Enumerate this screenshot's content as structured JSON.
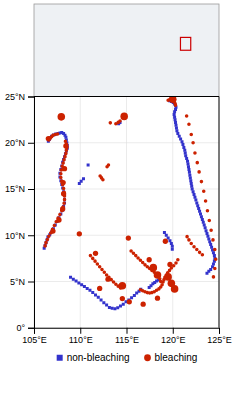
{
  "chart_data": [
    {
      "type": "map",
      "xlim": [
        -180,
        180
      ],
      "ylim": [
        -90,
        90
      ],
      "tick_labels": false,
      "region": [
        105,
        125,
        0,
        25
      ],
      "color": "#cc0000"
    },
    {
      "type": "scatter",
      "xlim": [
        105,
        125
      ],
      "ylim": [
        0,
        25
      ],
      "xticks": [
        {
          "value": 105,
          "label": "105°E"
        },
        {
          "value": 110,
          "label": "110°E"
        },
        {
          "value": 115,
          "label": "115°E"
        },
        {
          "value": 120,
          "label": "120°E"
        },
        {
          "value": 125,
          "label": "125°E"
        }
      ],
      "yticks": [
        {
          "value": 0,
          "label": "0°"
        },
        {
          "value": 5,
          "label": "5°N"
        },
        {
          "value": 10,
          "label": "10°N"
        },
        {
          "value": 15,
          "label": "15°N"
        },
        {
          "value": 20,
          "label": "20°N"
        },
        {
          "value": 25,
          "label": "25°N"
        }
      ],
      "grid": true,
      "legend": "bottom",
      "series": [
        {
          "name": "non-bleaching",
          "color": "#3333cc",
          "marker": "square",
          "x": [
            106.55,
            106.65,
            106.75,
            106.9,
            107.1,
            107.35,
            107.6,
            107.8,
            108.0,
            108.2,
            108.35,
            108.45,
            108.5,
            108.55,
            108.6,
            108.6,
            108.5,
            108.4,
            108.3,
            108.2,
            108.1,
            108.0,
            107.9,
            107.8,
            107.8,
            107.9,
            108.0,
            108.1,
            108.2,
            108.3,
            108.3,
            108.3,
            108.2,
            108.1,
            107.9,
            107.7,
            107.5,
            107.3,
            107.1,
            106.9,
            106.7,
            106.5,
            106.4,
            106.3,
            106.2,
            106.1,
            110.35,
            110.1,
            109.9,
            110.85,
            114.3,
            114.15,
            119.65,
            119.85,
            120.05,
            120.2,
            120.3,
            120.35,
            120.3,
            120.2,
            120.15,
            120.2,
            120.25,
            120.3,
            120.35,
            120.4,
            120.45,
            120.55,
            120.7,
            120.85,
            121.0,
            121.1,
            121.2,
            121.3,
            121.35,
            121.4,
            121.5,
            121.6,
            121.65,
            121.7,
            121.75,
            121.8,
            121.85,
            121.9,
            121.95,
            122.0,
            122.05,
            122.1,
            122.2,
            122.3,
            122.4,
            122.5,
            122.6,
            122.7,
            122.8,
            122.9,
            123.0,
            123.1,
            123.2,
            123.3,
            123.4,
            123.5,
            123.6,
            123.7,
            123.8,
            123.9,
            124.0,
            124.1,
            124.2,
            124.3,
            124.4,
            124.5,
            124.55,
            124.5,
            124.4,
            124.3,
            124.1,
            123.9,
            123.7,
            119.1,
            119.3,
            119.5,
            119.7,
            119.85,
            119.95,
            119.95,
            117.45,
            117.65,
            117.85,
            118.05,
            118.25,
            118.45,
            116.55,
            116.35,
            116.1,
            115.85,
            115.55,
            115.25,
            114.95,
            114.65,
            114.35,
            114.05,
            113.75,
            113.45,
            113.15,
            112.85,
            112.55,
            112.25,
            111.95,
            111.65,
            111.35,
            111.05,
            110.75,
            110.45,
            110.15,
            109.85,
            109.55,
            109.25,
            108.95
          ],
          "values": [
            20.15,
            20.35,
            20.55,
            20.7,
            20.85,
            20.95,
            21.0,
            21.05,
            21.1,
            21.0,
            20.8,
            20.6,
            20.3,
            20.0,
            19.7,
            19.4,
            19.1,
            18.8,
            18.5,
            18.2,
            17.9,
            17.5,
            17.1,
            16.7,
            16.3,
            15.9,
            15.5,
            15.1,
            14.7,
            14.3,
            13.9,
            13.5,
            13.1,
            12.7,
            12.3,
            11.9,
            11.5,
            11.1,
            10.7,
            10.35,
            10.05,
            9.8,
            9.5,
            9.2,
            8.9,
            8.6,
            16.1,
            15.85,
            15.6,
            17.6,
            22.2,
            22.05,
            24.55,
            24.45,
            24.35,
            24.2,
            24.05,
            23.85,
            23.6,
            23.35,
            23.05,
            22.75,
            22.5,
            22.2,
            21.9,
            21.6,
            21.3,
            21.0,
            20.7,
            20.4,
            20.1,
            19.8,
            19.5,
            19.2,
            18.9,
            18.6,
            18.3,
            18.0,
            17.7,
            17.4,
            17.1,
            16.8,
            16.5,
            16.2,
            15.9,
            15.6,
            15.3,
            15.0,
            14.7,
            14.4,
            14.1,
            13.8,
            13.5,
            13.2,
            12.9,
            12.6,
            12.3,
            12.0,
            11.7,
            11.4,
            11.1,
            10.8,
            10.5,
            10.2,
            9.9,
            9.6,
            9.3,
            9.0,
            8.7,
            8.4,
            8.1,
            7.8,
            7.5,
            7.2,
            6.9,
            6.6,
            6.3,
            6.1,
            5.9,
            10.3,
            10.0,
            9.7,
            9.4,
            9.1,
            8.8,
            8.5,
            4.35,
            4.55,
            4.75,
            4.9,
            5.05,
            5.15,
            4.15,
            3.95,
            3.75,
            3.5,
            3.25,
            3.0,
            2.8,
            2.55,
            2.35,
            2.15,
            2.05,
            2.1,
            2.2,
            2.45,
            2.7,
            3.0,
            3.3,
            3.55,
            3.8,
            4.05,
            4.25,
            4.45,
            4.65,
            4.85,
            5.05,
            5.25,
            5.45
          ]
        },
        {
          "name": "bleaching",
          "color": "#cc2200",
          "marker": "circle",
          "x": [
            106.6,
            106.75,
            106.9,
            107.05,
            107.3,
            107.55,
            108.4,
            108.5,
            108.55,
            108.5,
            108.45,
            108.35,
            108.25,
            108.15,
            108.05,
            107.95,
            107.9,
            107.9,
            108.0,
            108.1,
            108.2,
            108.25,
            108.3,
            108.3,
            108.25,
            108.15,
            108.0,
            107.8,
            107.6,
            107.4,
            107.2,
            107.0,
            106.8,
            106.6,
            106.45,
            106.3,
            106.2,
            112.15,
            112.3,
            112.45,
            113.05,
            112.9,
            114.3,
            114.1,
            113.85,
            113.25,
            119.5,
            119.7,
            119.85,
            120.0,
            120.15,
            120.25,
            120.3,
            121.5,
            121.75,
            122.0,
            122.2,
            122.4,
            122.65,
            122.85,
            123.1,
            123.35,
            123.55,
            123.75,
            123.95,
            124.15,
            124.35,
            124.55,
            124.65,
            124.55,
            124.4,
            121.55,
            121.75,
            122.0,
            122.3,
            122.6,
            122.9,
            123.2,
            120.55,
            120.35,
            120.1,
            119.85,
            119.65,
            119.45,
            119.3,
            119.15,
            119.05,
            118.95,
            118.85,
            118.7,
            118.5,
            118.25,
            118.0,
            117.75,
            117.5,
            117.25,
            117.0,
            116.75,
            116.5,
            115.5,
            115.75,
            116.0,
            116.25,
            116.5,
            116.75,
            117.0,
            117.25,
            117.5,
            117.75,
            118.0,
            118.25,
            118.45,
            118.6,
            118.7,
            111.1,
            111.35,
            111.6,
            111.85,
            112.1,
            112.35,
            112.6,
            112.85,
            113.1,
            113.35,
            113.6,
            113.85,
            114.1,
            114.35
          ],
          "values": [
            20.3,
            20.5,
            20.65,
            20.8,
            20.9,
            20.95,
            20.15,
            19.85,
            19.5,
            19.2,
            18.85,
            18.5,
            18.15,
            17.8,
            17.45,
            17.05,
            16.65,
            16.25,
            15.85,
            15.45,
            15.05,
            14.65,
            14.25,
            13.85,
            13.45,
            13.05,
            12.65,
            12.25,
            11.85,
            11.45,
            11.05,
            10.65,
            10.25,
            9.9,
            9.55,
            9.2,
            8.85,
            16.4,
            16.2,
            16.0,
            17.6,
            17.4,
            22.35,
            22.2,
            22.05,
            22.15,
            24.6,
            24.7,
            24.65,
            24.55,
            24.4,
            24.25,
            24.05,
            22.9,
            22.0,
            20.9,
            20.0,
            18.9,
            17.85,
            16.85,
            15.8,
            14.75,
            13.7,
            12.65,
            11.6,
            10.55,
            9.5,
            8.45,
            7.4,
            6.4,
            5.5,
            9.85,
            9.5,
            9.1,
            8.75,
            8.45,
            8.15,
            7.9,
            7.35,
            7.0,
            6.7,
            6.45,
            6.2,
            5.95,
            5.7,
            5.45,
            5.2,
            4.95,
            4.65,
            4.4,
            4.2,
            4.05,
            3.9,
            3.8,
            3.75,
            3.8,
            3.9,
            4.0,
            4.1,
            8.3,
            8.05,
            7.8,
            7.55,
            7.3,
            7.05,
            6.8,
            6.6,
            6.4,
            6.2,
            6.0,
            5.8,
            5.55,
            5.3,
            5.0,
            7.8,
            7.5,
            7.2,
            6.9,
            6.6,
            6.3,
            6.0,
            5.7,
            5.45,
            5.2,
            4.95,
            4.7,
            4.5,
            4.3
          ]
        },
        {
          "name": "bleaching",
          "color": "#cc2200",
          "marker": "circle",
          "x": [
            106.55,
            108.45,
            108.3,
            108.15,
            108.2,
            108.1,
            107.7,
            107.05,
            109.9,
            115.2,
            119.2,
            119.7,
            118.35,
            116.8,
            115.3,
            114.55,
            113.0,
            112.1,
            111.65,
            117.45
          ],
          "values": [
            20.45,
            19.65,
            17.2,
            15.7,
            14.5,
            12.85,
            11.65,
            10.45,
            10.15,
            9.7,
            9.35,
            6.85,
            3.2,
            2.55,
            2.8,
            3.15,
            5.25,
            4.25,
            8.05,
            7.35
          ]
        },
        {
          "name": "bleaching",
          "color": "#cc2200",
          "marker": "circle",
          "x": [
            107.95,
            114.75,
            120.0,
            119.5,
            119.85,
            120.2,
            118.35,
            117.9,
            114.55
          ],
          "values": [
            22.8,
            22.85,
            24.7,
            5.5,
            4.8,
            4.2,
            5.7,
            6.5,
            4.55
          ]
        }
      ]
    }
  ]
}
